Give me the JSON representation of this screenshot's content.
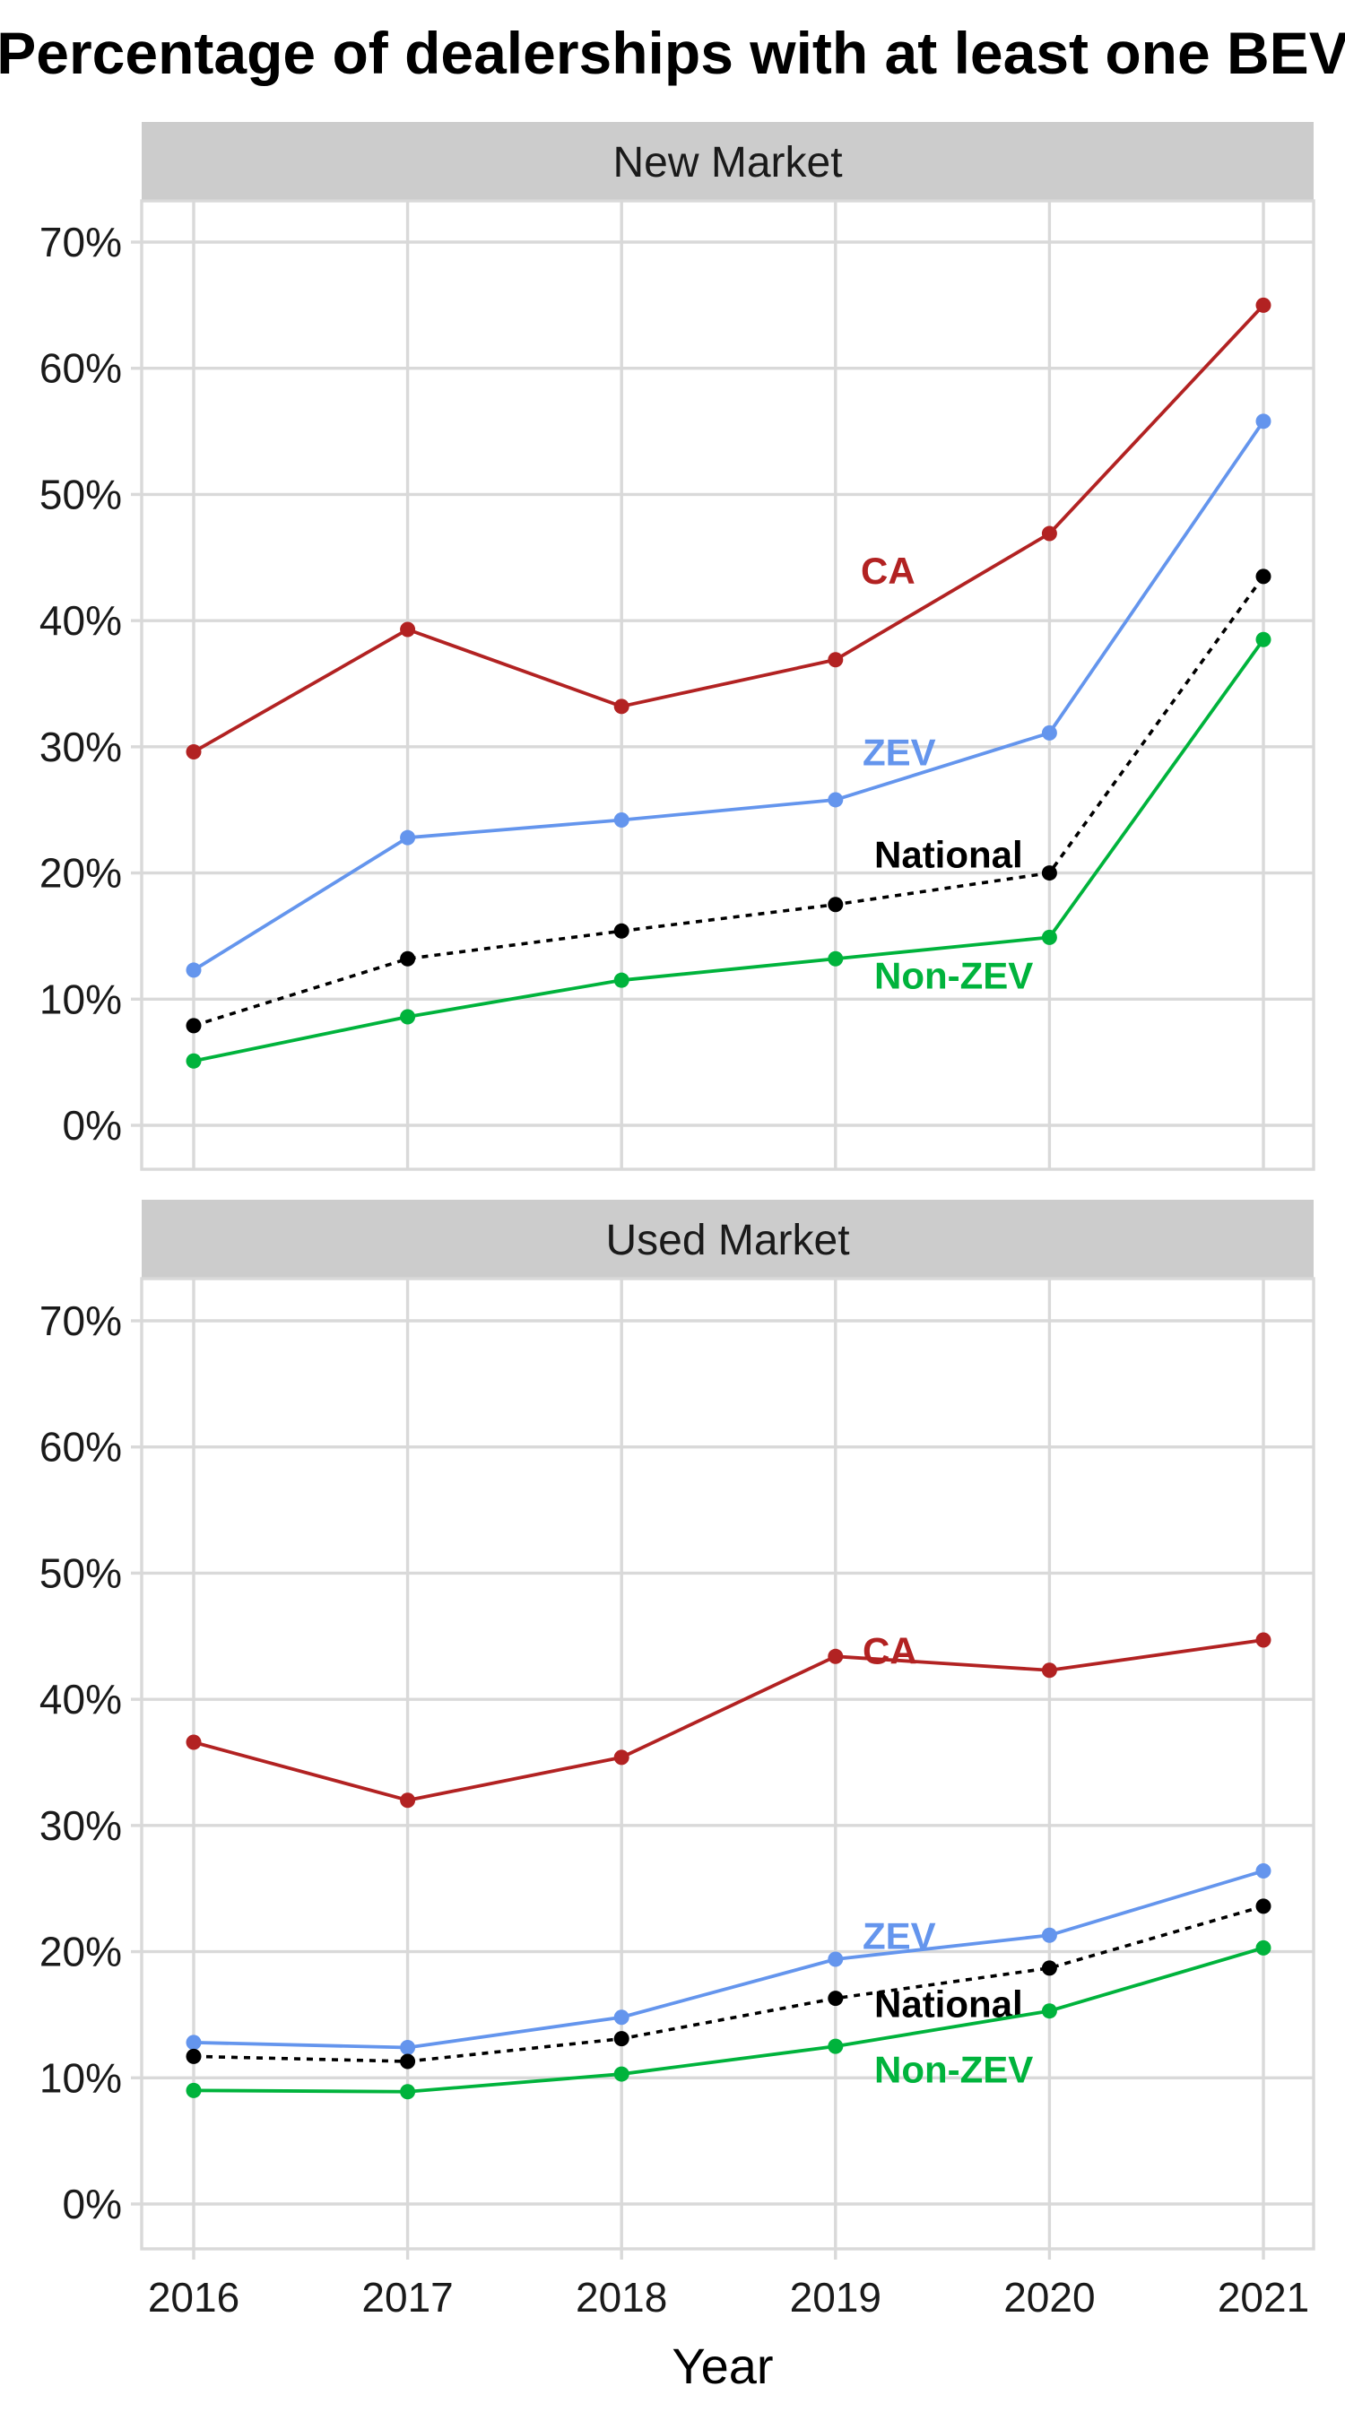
{
  "chart_data": {
    "type": "line",
    "title": "Percentage of dealerships with at least one BEV",
    "xlabel": "Year",
    "ylabel": "",
    "x": [
      2016,
      2017,
      2018,
      2019,
      2020,
      2021
    ],
    "x_tick_labels": [
      "2016",
      "2017",
      "2018",
      "2019",
      "2020",
      "2021"
    ],
    "ylim": [
      0,
      70
    ],
    "y_ticks": [
      0,
      10,
      20,
      30,
      40,
      50,
      60,
      70
    ],
    "y_tick_labels": [
      "0%",
      "10%",
      "20%",
      "30%",
      "40%",
      "50%",
      "60%",
      "70%"
    ],
    "grid": true,
    "legend": "none (direct labels)",
    "panels": [
      {
        "name": "New Market",
        "series": [
          {
            "name": "CA",
            "color": "#b22222",
            "dash": "solid",
            "values": [
              29.6,
              39.3,
              33.2,
              36.9,
              46.9,
              65.0
            ]
          },
          {
            "name": "ZEV",
            "color": "#6495ed",
            "dash": "solid",
            "values": [
              12.3,
              22.8,
              24.2,
              25.8,
              31.1,
              55.8
            ]
          },
          {
            "name": "National",
            "color": "#000000",
            "dash": "dotted",
            "values": [
              7.9,
              13.2,
              15.4,
              17.5,
              20.0,
              43.5
            ]
          },
          {
            "name": "Non-ZEV",
            "color": "#00b33c",
            "dash": "solid",
            "values": [
              5.1,
              8.6,
              11.5,
              13.2,
              14.9,
              38.5
            ]
          }
        ]
      },
      {
        "name": "Used Market",
        "series": [
          {
            "name": "CA",
            "color": "#b22222",
            "dash": "solid",
            "values": [
              36.6,
              32.0,
              35.4,
              43.4,
              42.3,
              44.7
            ]
          },
          {
            "name": "ZEV",
            "color": "#6495ed",
            "dash": "solid",
            "values": [
              12.8,
              12.4,
              14.8,
              19.4,
              21.3,
              26.4
            ]
          },
          {
            "name": "National",
            "color": "#000000",
            "dash": "dotted",
            "values": [
              11.7,
              11.3,
              13.1,
              16.3,
              18.7,
              23.6
            ]
          },
          {
            "name": "Non-ZEV",
            "color": "#00b33c",
            "dash": "solid",
            "values": [
              9.0,
              8.9,
              10.3,
              12.5,
              15.3,
              20.3
            ]
          }
        ]
      }
    ]
  }
}
